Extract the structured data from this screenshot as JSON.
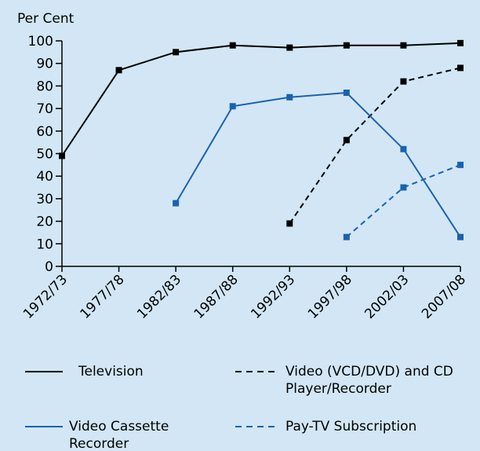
{
  "chart_data": {
    "type": "line",
    "ylabel": "Per Cent",
    "categories": [
      "1972/73",
      "1977/78",
      "1982/83",
      "1987/88",
      "1992/93",
      "1997/98",
      "2002/03",
      "2007/08"
    ],
    "series": [
      {
        "name": "Television",
        "color": "#000000",
        "dashed": false,
        "values": [
          49,
          87,
          95,
          98,
          97,
          98,
          98,
          99
        ]
      },
      {
        "name": "Video (VCD/DVD) and CD Player/Recorder",
        "color": "#000000",
        "dashed": true,
        "values": [
          null,
          null,
          null,
          null,
          19,
          56,
          82,
          88
        ]
      },
      {
        "name": "Video Cassette Recorder",
        "color": "#1a62b0",
        "dashed": false,
        "values": [
          null,
          null,
          28,
          71,
          75,
          77,
          52,
          13
        ]
      },
      {
        "name": "Pay-TV Subscription",
        "color": "#1a62b0",
        "dashed": true,
        "values": [
          null,
          null,
          null,
          null,
          null,
          13,
          35,
          45
        ]
      }
    ],
    "ylim": [
      0,
      100
    ],
    "yticks": [
      0,
      10,
      20,
      30,
      40,
      50,
      60,
      70,
      80,
      90,
      100
    ],
    "grid": false
  }
}
